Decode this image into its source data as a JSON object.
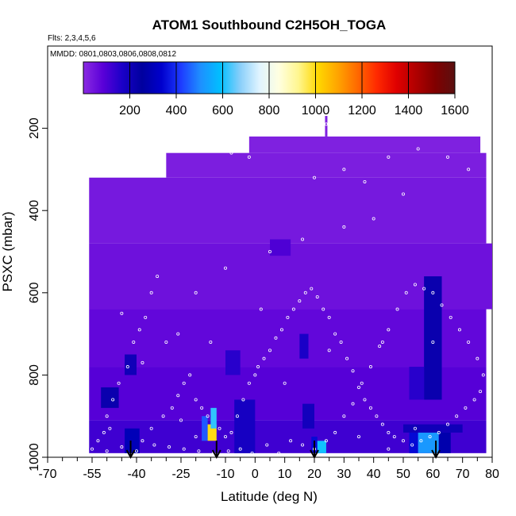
{
  "chart_data": {
    "type": "heatmap",
    "title": "ATOM1 Southbound C2H5OH_TOGA",
    "flights_label": "Flts: 2,3,4,5,6",
    "dates_label": "MMDD: 0801,0803,0806,0808,0812",
    "xlabel": "Latitude (deg N)",
    "ylabel": "PSXC (mbar)",
    "xlim": [
      -70,
      80
    ],
    "ylim": [
      1000,
      0
    ],
    "x_ticks": [
      -70,
      -55,
      -40,
      -25,
      -10,
      0,
      10,
      20,
      30,
      40,
      50,
      60,
      70,
      80
    ],
    "x_tick_labels": [
      "-70",
      "-55",
      "-40",
      "-25",
      "-10",
      "0",
      "10",
      "20",
      "30",
      "40",
      "50",
      "60",
      "70",
      "80"
    ],
    "x_minor_ticks": [
      -65,
      -60,
      -50,
      -45,
      -35,
      -30,
      -20,
      -15,
      -5,
      5,
      15,
      25,
      35,
      45,
      55,
      65,
      75
    ],
    "y_ticks": [
      200,
      400,
      600,
      800,
      1000
    ],
    "y_tick_labels": [
      "200",
      "400",
      "600",
      "800",
      "1000"
    ],
    "colorbar": {
      "min": 0,
      "max": 1600,
      "ticks": [
        200,
        400,
        600,
        800,
        1000,
        1200,
        1400,
        1600
      ],
      "tick_labels": [
        "200",
        "400",
        "600",
        "800",
        "1000",
        "1200",
        "1400",
        "1600"
      ],
      "colors": [
        "#8a2be2",
        "#5a00d8",
        "#1a00c8",
        "#00009e",
        "#0000cd",
        "#1e3cff",
        "#1e90ff",
        "#00bfff",
        "#87cefa",
        "#e0f4ff",
        "#ffffe0",
        "#fff68f",
        "#ffd700",
        "#ffa500",
        "#ff6a00",
        "#ff2a00",
        "#e00000",
        "#b00000",
        "#800000",
        "#5a1010"
      ]
    },
    "regions": [
      {
        "lat": [
          -56,
          78
        ],
        "p": [
          910,
          990
        ],
        "value": 120
      },
      {
        "lat": [
          -56,
          78
        ],
        "p": [
          780,
          910
        ],
        "value": 90
      },
      {
        "lat": [
          -56,
          78
        ],
        "p": [
          640,
          780
        ],
        "value": 70
      },
      {
        "lat": [
          -56,
          80
        ],
        "p": [
          480,
          640
        ],
        "value": 50
      },
      {
        "lat": [
          -56,
          78
        ],
        "p": [
          320,
          480
        ],
        "value": 35
      },
      {
        "lat": [
          -30,
          78
        ],
        "p": [
          260,
          320
        ],
        "value": 25
      },
      {
        "lat": [
          -2,
          76
        ],
        "p": [
          220,
          260
        ],
        "value": 20
      },
      {
        "lat": [
          -44,
          -39
        ],
        "p": [
          930,
          990
        ],
        "value": 300
      },
      {
        "lat": [
          -52,
          -46
        ],
        "p": [
          830,
          880
        ],
        "value": 220
      },
      {
        "lat": [
          -18,
          -16
        ],
        "p": [
          900,
          960
        ],
        "value": 450
      },
      {
        "lat": [
          -16,
          -13
        ],
        "p": [
          920,
          960
        ],
        "value": 1000
      },
      {
        "lat": [
          -15,
          -13
        ],
        "p": [
          880,
          930
        ],
        "value": 620
      },
      {
        "lat": [
          -7,
          0
        ],
        "p": [
          860,
          990
        ],
        "value": 180
      },
      {
        "lat": [
          19,
          21
        ],
        "p": [
          950,
          990
        ],
        "value": 350
      },
      {
        "lat": [
          21,
          24
        ],
        "p": [
          960,
          990
        ],
        "value": 600
      },
      {
        "lat": [
          16,
          20
        ],
        "p": [
          870,
          930
        ],
        "value": 190
      },
      {
        "lat": [
          15,
          18
        ],
        "p": [
          700,
          760
        ],
        "value": 170
      },
      {
        "lat": [
          5,
          12
        ],
        "p": [
          470,
          510
        ],
        "value": 100
      },
      {
        "lat": [
          52,
          55
        ],
        "p": [
          940,
          990
        ],
        "value": 350
      },
      {
        "lat": [
          55,
          62
        ],
        "p": [
          940,
          990
        ],
        "value": 520
      },
      {
        "lat": [
          62,
          66
        ],
        "p": [
          940,
          990
        ],
        "value": 280
      },
      {
        "lat": [
          50,
          70
        ],
        "p": [
          920,
          940
        ],
        "value": 200
      },
      {
        "lat": [
          57,
          63
        ],
        "p": [
          560,
          860
        ],
        "value": 220
      },
      {
        "lat": [
          52,
          57
        ],
        "p": [
          780,
          860
        ],
        "value": 150
      },
      {
        "lat": [
          -44,
          -40
        ],
        "p": [
          750,
          800
        ],
        "value": 200
      },
      {
        "lat": [
          -10,
          -5
        ],
        "p": [
          740,
          800
        ],
        "value": 150
      }
    ],
    "arrows_lat": [
      -42,
      -13,
      20,
      61
    ],
    "sample_points": [
      [
        -55,
        980
      ],
      [
        -53,
        960
      ],
      [
        -51,
        940
      ],
      [
        -49,
        930
      ],
      [
        -50,
        900
      ],
      [
        -48,
        860
      ],
      [
        -46,
        820
      ],
      [
        -43,
        780
      ],
      [
        -41,
        720
      ],
      [
        -39,
        690
      ],
      [
        -37,
        660
      ],
      [
        -35,
        600
      ],
      [
        -33,
        560
      ],
      [
        -38,
        960
      ],
      [
        -35,
        930
      ],
      [
        -31,
        900
      ],
      [
        -28,
        880
      ],
      [
        -26,
        850
      ],
      [
        -24,
        820
      ],
      [
        -22,
        800
      ],
      [
        -20,
        860
      ],
      [
        -18,
        880
      ],
      [
        -16,
        900
      ],
      [
        -12,
        930
      ],
      [
        -10,
        950
      ],
      [
        -8,
        940
      ],
      [
        -6,
        900
      ],
      [
        -4,
        860
      ],
      [
        -2,
        820
      ],
      [
        0,
        800
      ],
      [
        1,
        780
      ],
      [
        3,
        760
      ],
      [
        5,
        740
      ],
      [
        7,
        710
      ],
      [
        9,
        690
      ],
      [
        11,
        660
      ],
      [
        13,
        640
      ],
      [
        15,
        620
      ],
      [
        17,
        600
      ],
      [
        19,
        590
      ],
      [
        21,
        610
      ],
      [
        23,
        640
      ],
      [
        25,
        660
      ],
      [
        27,
        700
      ],
      [
        29,
        720
      ],
      [
        31,
        760
      ],
      [
        33,
        790
      ],
      [
        35,
        830
      ],
      [
        37,
        860
      ],
      [
        39,
        880
      ],
      [
        41,
        900
      ],
      [
        43,
        920
      ],
      [
        45,
        940
      ],
      [
        47,
        950
      ],
      [
        50,
        960
      ],
      [
        53,
        970
      ],
      [
        56,
        960
      ],
      [
        59,
        950
      ],
      [
        62,
        940
      ],
      [
        65,
        920
      ],
      [
        68,
        900
      ],
      [
        71,
        880
      ],
      [
        74,
        860
      ],
      [
        76,
        840
      ],
      [
        77,
        800
      ],
      [
        75,
        760
      ],
      [
        72,
        720
      ],
      [
        69,
        690
      ],
      [
        66,
        660
      ],
      [
        63,
        630
      ],
      [
        60,
        600
      ],
      [
        57,
        590
      ],
      [
        54,
        580
      ],
      [
        51,
        600
      ],
      [
        48,
        640
      ],
      [
        45,
        690
      ],
      [
        42,
        730
      ],
      [
        39,
        780
      ],
      [
        36,
        820
      ],
      [
        33,
        870
      ],
      [
        30,
        900
      ],
      [
        27,
        940
      ],
      [
        24,
        960
      ],
      [
        20,
        980
      ],
      [
        16,
        970
      ],
      [
        12,
        960
      ],
      [
        8,
        990
      ],
      [
        4,
        970
      ],
      [
        -1,
        990
      ],
      [
        -5,
        980
      ],
      [
        -9,
        985
      ],
      [
        -14,
        990
      ],
      [
        -19,
        985
      ],
      [
        -24,
        980
      ],
      [
        -29,
        975
      ],
      [
        -34,
        970
      ],
      [
        -40,
        985
      ],
      [
        -45,
        975
      ],
      [
        -50,
        985
      ],
      [
        -20,
        600
      ],
      [
        -10,
        540
      ],
      [
        5,
        500
      ],
      [
        16,
        470
      ],
      [
        30,
        440
      ],
      [
        40,
        420
      ],
      [
        50,
        360
      ],
      [
        24,
        190
      ],
      [
        20,
        320
      ],
      [
        30,
        300
      ],
      [
        37,
        330
      ],
      [
        45,
        270
      ],
      [
        55,
        250
      ],
      [
        65,
        270
      ],
      [
        72,
        300
      ],
      [
        -2,
        270
      ],
      [
        -8,
        260
      ],
      [
        -45,
        650
      ],
      [
        -38,
        770
      ],
      [
        -26,
        700
      ],
      [
        -30,
        720
      ],
      [
        10,
        820
      ],
      [
        2,
        640
      ],
      [
        -15,
        720
      ],
      [
        25,
        740
      ],
      [
        43,
        720
      ],
      [
        60,
        720
      ],
      [
        -25,
        910
      ],
      [
        -20,
        950
      ],
      [
        35,
        950
      ],
      [
        45,
        980
      ],
      [
        54,
        930
      ]
    ]
  }
}
